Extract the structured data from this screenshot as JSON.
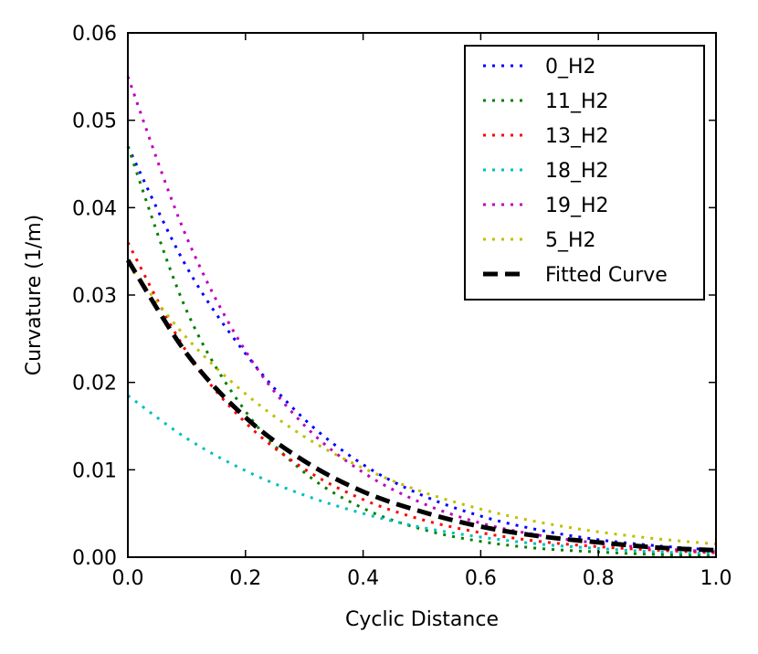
{
  "chart_data": {
    "type": "line",
    "title": "",
    "xlabel": "Cyclic Distance",
    "ylabel": "Curvature (1/m)",
    "xlim": [
      0.0,
      1.0
    ],
    "ylim": [
      0.0,
      0.06
    ],
    "x_ticks": [
      0.0,
      0.2,
      0.4,
      0.6,
      0.8,
      1.0
    ],
    "x_tick_labels": [
      "0.0",
      "0.2",
      "0.4",
      "0.6",
      "0.8",
      "1.0"
    ],
    "y_ticks": [
      0.0,
      0.01,
      0.02,
      0.03,
      0.04,
      0.05,
      0.06
    ],
    "y_tick_labels": [
      "0.00",
      "0.01",
      "0.02",
      "0.03",
      "0.04",
      "0.05",
      "0.06"
    ],
    "grid": false,
    "legend_position": "top-right",
    "series": [
      {
        "name": "0_H2",
        "color": "#0000ff",
        "style": "dotted",
        "x": [
          0.0,
          0.1,
          0.2,
          0.3,
          0.4,
          0.5,
          0.6,
          0.7,
          0.8,
          0.9,
          1.0
        ],
        "y": [
          0.047,
          0.0332,
          0.0233,
          0.0158,
          0.0106,
          0.0071,
          0.0047,
          0.0031,
          0.002,
          0.0013,
          0.0008
        ]
      },
      {
        "name": "11_H2",
        "color": "#008000",
        "style": "dotted",
        "x": [
          0.0,
          0.1,
          0.2,
          0.3,
          0.4,
          0.5,
          0.6,
          0.7,
          0.8,
          0.9,
          1.0
        ],
        "y": [
          0.047,
          0.0282,
          0.0167,
          0.0097,
          0.0056,
          0.0032,
          0.0018,
          0.001,
          0.0006,
          0.0003,
          0.0002
        ]
      },
      {
        "name": "13_H2",
        "color": "#ff0000",
        "style": "dotted",
        "x": [
          0.0,
          0.1,
          0.2,
          0.3,
          0.4,
          0.5,
          0.6,
          0.7,
          0.8,
          0.9,
          1.0
        ],
        "y": [
          0.036,
          0.0235,
          0.0154,
          0.0101,
          0.0066,
          0.0043,
          0.0028,
          0.0018,
          0.0012,
          0.0008,
          0.0005
        ]
      },
      {
        "name": "18_H2",
        "color": "#00bfbf",
        "style": "dotted",
        "x": [
          0.0,
          0.1,
          0.2,
          0.3,
          0.4,
          0.5,
          0.6,
          0.7,
          0.8,
          0.9,
          1.0
        ],
        "y": [
          0.0185,
          0.0136,
          0.0099,
          0.0071,
          0.005,
          0.0034,
          0.0023,
          0.0015,
          0.001,
          0.0006,
          0.0004
        ]
      },
      {
        "name": "19_H2",
        "color": "#bf00bf",
        "style": "dotted",
        "x": [
          0.0,
          0.1,
          0.2,
          0.3,
          0.4,
          0.5,
          0.6,
          0.7,
          0.8,
          0.9,
          1.0
        ],
        "y": [
          0.055,
          0.0366,
          0.0236,
          0.0151,
          0.0097,
          0.0062,
          0.0039,
          0.0025,
          0.0016,
          0.001,
          0.0006
        ]
      },
      {
        "name": "5_H2",
        "color": "#bfbf00",
        "style": "dotted",
        "x": [
          0.0,
          0.1,
          0.2,
          0.3,
          0.4,
          0.5,
          0.6,
          0.7,
          0.8,
          0.9,
          1.0
        ],
        "y": [
          0.0335,
          0.0251,
          0.0187,
          0.0138,
          0.0102,
          0.0075,
          0.0055,
          0.004,
          0.0029,
          0.0021,
          0.0015
        ]
      },
      {
        "name": "Fitted Curve",
        "color": "#000000",
        "style": "dashed",
        "x": [
          0.0,
          0.1,
          0.2,
          0.3,
          0.4,
          0.5,
          0.6,
          0.7,
          0.8,
          0.9,
          1.0
        ],
        "y": [
          0.034,
          0.0233,
          0.016,
          0.011,
          0.0075,
          0.0052,
          0.0035,
          0.0024,
          0.0017,
          0.0011,
          0.0008
        ]
      }
    ]
  }
}
